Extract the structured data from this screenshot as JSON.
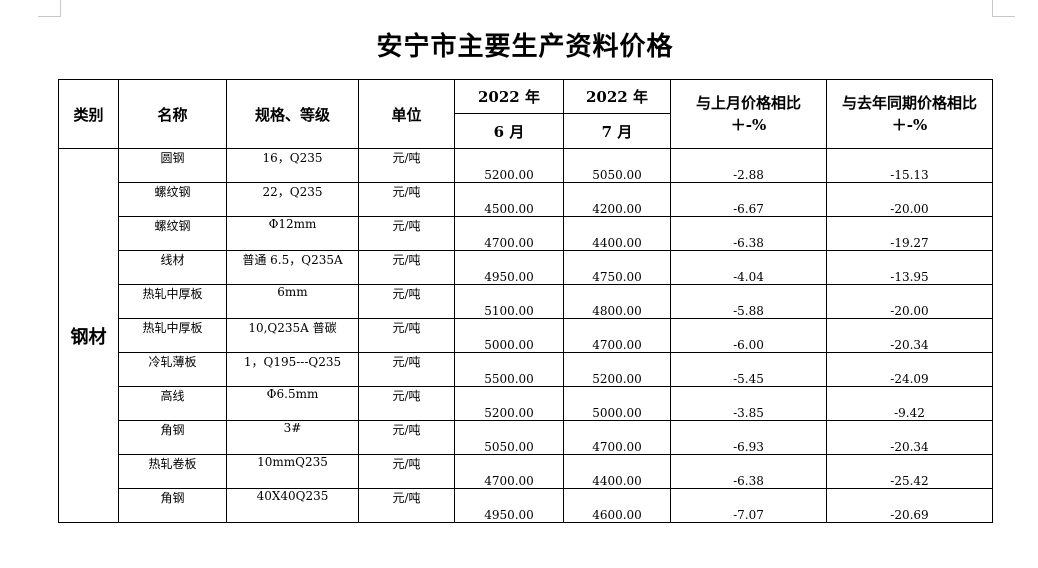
{
  "title": "安宁市主要生产资料价格",
  "headers": {
    "category": "类别",
    "name": "名称",
    "spec": "规格、等级",
    "unit": "单位",
    "year1": "2022 年",
    "year2": "2022 年",
    "month1": "6 月",
    "month2": "7 月",
    "mom_line1": "与上月价格相比",
    "mom_line2": "＋-%",
    "yoy_line1": "与去年同期价格相比",
    "yoy_line2": "＋-%"
  },
  "category": "钢材",
  "rows": [
    {
      "name": "圆钢",
      "spec": "16，Q235",
      "unit": "元/吨",
      "jun": "5200.00",
      "jul": "5050.00",
      "mom": "-2.88",
      "yoy": "-15.13"
    },
    {
      "name": "螺纹钢",
      "spec": "22，Q235",
      "unit": "元/吨",
      "jun": "4500.00",
      "jul": "4200.00",
      "mom": "-6.67",
      "yoy": "-20.00"
    },
    {
      "name": "螺纹钢",
      "spec": "Φ12mm",
      "unit": "元/吨",
      "jun": "4700.00",
      "jul": "4400.00",
      "mom": "-6.38",
      "yoy": "-19.27"
    },
    {
      "name": "线材",
      "spec": "普通 6.5，Q235A",
      "unit": "元/吨",
      "jun": "4950.00",
      "jul": "4750.00",
      "mom": "-4.04",
      "yoy": "-13.95"
    },
    {
      "name": "热轧中厚板",
      "spec": "6mm",
      "unit": "元/吨",
      "jun": "5100.00",
      "jul": "4800.00",
      "mom": "-5.88",
      "yoy": "-20.00"
    },
    {
      "name": "热轧中厚板",
      "spec": "10,Q235A 普碳",
      "unit": "元/吨",
      "jun": "5000.00",
      "jul": "4700.00",
      "mom": "-6.00",
      "yoy": "-20.34"
    },
    {
      "name": "冷轧薄板",
      "spec": "1，Q195---Q235",
      "unit": "元/吨",
      "jun": "5500.00",
      "jul": "5200.00",
      "mom": "-5.45",
      "yoy": "-24.09"
    },
    {
      "name": "高线",
      "spec": "Φ6.5mm",
      "unit": "元/吨",
      "jun": "5200.00",
      "jul": "5000.00",
      "mom": "-3.85",
      "yoy": "-9.42"
    },
    {
      "name": "角钢",
      "spec": "3#",
      "unit": "元/吨",
      "jun": "5050.00",
      "jul": "4700.00",
      "mom": "-6.93",
      "yoy": "-20.34"
    },
    {
      "name": "热轧卷板",
      "spec": "10mmQ235",
      "unit": "元/吨",
      "jun": "4700.00",
      "jul": "4400.00",
      "mom": "-6.38",
      "yoy": "-25.42"
    },
    {
      "name": "角钢",
      "spec": "40X40Q235",
      "unit": "元/吨",
      "jun": "4950.00",
      "jul": "4600.00",
      "mom": "-7.07",
      "yoy": "-20.69"
    }
  ]
}
